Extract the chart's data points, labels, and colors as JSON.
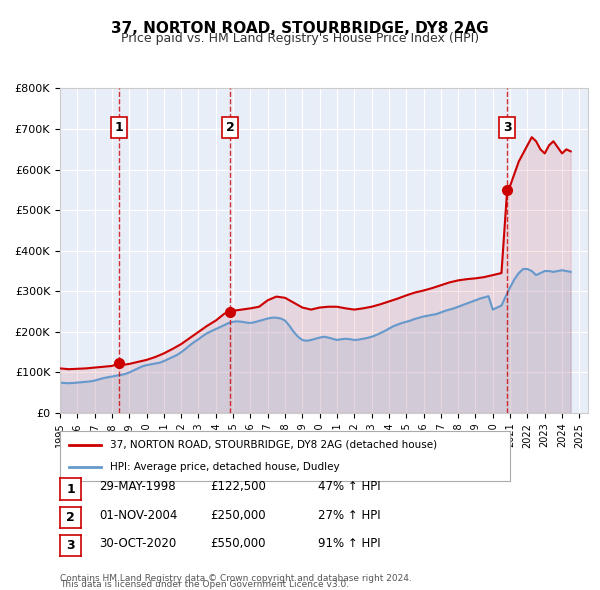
{
  "title": "37, NORTON ROAD, STOURBRIDGE, DY8 2AG",
  "subtitle": "Price paid vs. HM Land Registry's House Price Index (HPI)",
  "legend_line1": "37, NORTON ROAD, STOURBRIDGE, DY8 2AG (detached house)",
  "legend_line2": "HPI: Average price, detached house, Dudley",
  "footer1": "Contains HM Land Registry data © Crown copyright and database right 2024.",
  "footer2": "This data is licensed under the Open Government Licence v3.0.",
  "transactions": [
    {
      "num": 1,
      "date": "29-MAY-1998",
      "price": 122500,
      "year": 1998.41,
      "pct": "47% ↑ HPI"
    },
    {
      "num": 2,
      "date": "01-NOV-2004",
      "price": 250000,
      "year": 2004.84,
      "pct": "27% ↑ HPI"
    },
    {
      "num": 3,
      "date": "30-OCT-2020",
      "price": 550000,
      "year": 2020.83,
      "pct": "91% ↑ HPI"
    }
  ],
  "property_color": "#cc0000",
  "hpi_color": "#6699cc",
  "dashed_line_color": "#cc0000",
  "background_color": "#ffffff",
  "plot_bg_color": "#e8eef8",
  "grid_color": "#ffffff",
  "ylim": [
    0,
    800000
  ],
  "xlim_start": 1995.0,
  "xlim_end": 2025.5,
  "yticks": [
    0,
    100000,
    200000,
    300000,
    400000,
    500000,
    600000,
    700000,
    800000
  ],
  "ytick_labels": [
    "£0",
    "£100K",
    "£200K",
    "£300K",
    "£400K",
    "£500K",
    "£600K",
    "£700K",
    "£800K"
  ],
  "hpi_years": [
    1995.0,
    1995.25,
    1995.5,
    1995.75,
    1996.0,
    1996.25,
    1996.5,
    1996.75,
    1997.0,
    1997.25,
    1997.5,
    1997.75,
    1998.0,
    1998.25,
    1998.5,
    1998.75,
    1999.0,
    1999.25,
    1999.5,
    1999.75,
    2000.0,
    2000.25,
    2000.5,
    2000.75,
    2001.0,
    2001.25,
    2001.5,
    2001.75,
    2002.0,
    2002.25,
    2002.5,
    2002.75,
    2003.0,
    2003.25,
    2003.5,
    2003.75,
    2004.0,
    2004.25,
    2004.5,
    2004.75,
    2005.0,
    2005.25,
    2005.5,
    2005.75,
    2006.0,
    2006.25,
    2006.5,
    2006.75,
    2007.0,
    2007.25,
    2007.5,
    2007.75,
    2008.0,
    2008.25,
    2008.5,
    2008.75,
    2009.0,
    2009.25,
    2009.5,
    2009.75,
    2010.0,
    2010.25,
    2010.5,
    2010.75,
    2011.0,
    2011.25,
    2011.5,
    2011.75,
    2012.0,
    2012.25,
    2012.5,
    2012.75,
    2013.0,
    2013.25,
    2013.5,
    2013.75,
    2014.0,
    2014.25,
    2014.5,
    2014.75,
    2015.0,
    2015.25,
    2015.5,
    2015.75,
    2016.0,
    2016.25,
    2016.5,
    2016.75,
    2017.0,
    2017.25,
    2017.5,
    2017.75,
    2018.0,
    2018.25,
    2018.5,
    2018.75,
    2019.0,
    2019.25,
    2019.5,
    2019.75,
    2020.0,
    2020.25,
    2020.5,
    2020.75,
    2021.0,
    2021.25,
    2021.5,
    2021.75,
    2022.0,
    2022.25,
    2022.5,
    2022.75,
    2023.0,
    2023.25,
    2023.5,
    2023.75,
    2024.0,
    2024.25,
    2024.5
  ],
  "hpi_values": [
    75000,
    74000,
    73500,
    74000,
    75000,
    76000,
    77000,
    78000,
    80000,
    83000,
    86000,
    88000,
    90000,
    92000,
    94000,
    96000,
    100000,
    105000,
    110000,
    115000,
    118000,
    120000,
    122000,
    124000,
    128000,
    133000,
    138000,
    143000,
    150000,
    158000,
    167000,
    175000,
    182000,
    190000,
    197000,
    202000,
    207000,
    212000,
    217000,
    222000,
    225000,
    226000,
    225000,
    223000,
    222000,
    224000,
    227000,
    230000,
    233000,
    235000,
    235000,
    233000,
    228000,
    215000,
    200000,
    188000,
    180000,
    178000,
    180000,
    183000,
    186000,
    188000,
    186000,
    183000,
    180000,
    182000,
    183000,
    182000,
    180000,
    181000,
    183000,
    185000,
    188000,
    192000,
    197000,
    202000,
    208000,
    214000,
    218000,
    222000,
    225000,
    228000,
    232000,
    235000,
    238000,
    240000,
    242000,
    244000,
    248000,
    252000,
    255000,
    258000,
    262000,
    266000,
    270000,
    274000,
    278000,
    282000,
    285000,
    288000,
    255000,
    260000,
    265000,
    288000,
    310000,
    330000,
    345000,
    355000,
    355000,
    350000,
    340000,
    345000,
    350000,
    350000,
    348000,
    350000,
    352000,
    350000,
    348000
  ],
  "property_years": [
    1995.0,
    1995.5,
    1996.0,
    1996.5,
    1997.0,
    1997.5,
    1998.0,
    1998.41,
    1998.5,
    1999.0,
    1999.5,
    2000.0,
    2000.5,
    2001.0,
    2001.5,
    2002.0,
    2002.5,
    2003.0,
    2003.5,
    2004.0,
    2004.5,
    2004.84,
    2005.0,
    2005.5,
    2006.0,
    2006.5,
    2007.0,
    2007.5,
    2008.0,
    2008.5,
    2009.0,
    2009.5,
    2010.0,
    2010.5,
    2011.0,
    2011.5,
    2012.0,
    2012.5,
    2013.0,
    2013.5,
    2014.0,
    2014.5,
    2015.0,
    2015.5,
    2016.0,
    2016.5,
    2017.0,
    2017.5,
    2018.0,
    2018.5,
    2019.0,
    2019.5,
    2020.0,
    2020.5,
    2020.83,
    2021.0,
    2021.5,
    2022.0,
    2022.25,
    2022.5,
    2022.75,
    2023.0,
    2023.25,
    2023.5,
    2023.75,
    2024.0,
    2024.25,
    2024.5
  ],
  "property_values": [
    110000,
    108000,
    109000,
    110000,
    112000,
    114000,
    116000,
    122500,
    118000,
    121000,
    126000,
    131000,
    138000,
    147000,
    158000,
    170000,
    185000,
    200000,
    215000,
    228000,
    245000,
    250000,
    252000,
    255000,
    258000,
    262000,
    278000,
    287000,
    284000,
    272000,
    260000,
    255000,
    260000,
    262000,
    262000,
    258000,
    255000,
    258000,
    262000,
    268000,
    275000,
    282000,
    290000,
    297000,
    302000,
    308000,
    315000,
    322000,
    327000,
    330000,
    332000,
    335000,
    340000,
    345000,
    550000,
    560000,
    620000,
    660000,
    680000,
    670000,
    650000,
    640000,
    660000,
    670000,
    655000,
    640000,
    650000,
    645000
  ]
}
